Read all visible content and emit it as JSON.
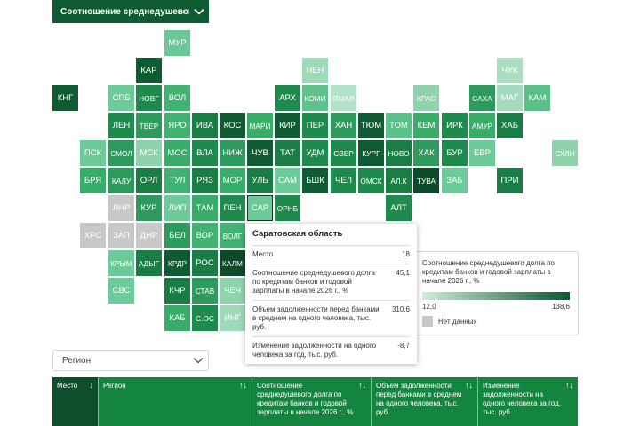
{
  "indicator_dropdown": {
    "label": "Соотношение среднедушевог…",
    "icon": "chevron-down-icon"
  },
  "map": {
    "tiles": [
      {
        "code": "МУР",
        "fill": "#68c996",
        "text": "#ffffff"
      },
      {
        "code": "КАР",
        "fill": "#0f5c34",
        "text": "#ffffff"
      },
      {
        "code": "НЕН",
        "fill": "#9ed9b8",
        "text": "#ffffff"
      },
      {
        "code": "ЧУК",
        "fill": "#a9dec1",
        "text": "#ffffff"
      },
      {
        "code": "КНГ",
        "fill": "#0f5c34",
        "text": "#ffffff"
      },
      {
        "code": "СПБ",
        "fill": "#6dca99",
        "text": "#ffffff"
      },
      {
        "code": "НОВГ",
        "fill": "#1f8a4e",
        "text": "#ffffff"
      },
      {
        "code": "ВОЛ",
        "fill": "#42b273",
        "text": "#ffffff"
      },
      {
        "code": "АРХ",
        "fill": "#1f8a4e",
        "text": "#ffffff"
      },
      {
        "code": "КОМИ",
        "fill": "#5fc28d",
        "text": "#ffffff"
      },
      {
        "code": "ЯМАЛ",
        "fill": "#b3e2c8",
        "text": "#ffffff"
      },
      {
        "code": "КРАС",
        "fill": "#8fd3ad",
        "text": "#ffffff"
      },
      {
        "code": "САХА",
        "fill": "#2e9a5e",
        "text": "#ffffff"
      },
      {
        "code": "МАГ",
        "fill": "#a3dcbd",
        "text": "#ffffff"
      },
      {
        "code": "КАМ",
        "fill": "#5bbf89",
        "text": "#ffffff"
      },
      {
        "code": "ЛЕН",
        "fill": "#1f8a4e",
        "text": "#ffffff"
      },
      {
        "code": "ТВЕР",
        "fill": "#2e9a5e",
        "text": "#ffffff"
      },
      {
        "code": "ЯРО",
        "fill": "#42b273",
        "text": "#ffffff"
      },
      {
        "code": "ИВА",
        "fill": "#1a7d46",
        "text": "#ffffff"
      },
      {
        "code": "КОС",
        "fill": "#0f5c34",
        "text": "#ffffff"
      },
      {
        "code": "МАРИ",
        "fill": "#3aac6a",
        "text": "#ffffff"
      },
      {
        "code": "КИР",
        "fill": "#0f5c34",
        "text": "#ffffff"
      },
      {
        "code": "ПЕР",
        "fill": "#1f8a4e",
        "text": "#ffffff"
      },
      {
        "code": "ХАН",
        "fill": "#2e9a5e",
        "text": "#ffffff"
      },
      {
        "code": "ТЮМ",
        "fill": "#0f5c34",
        "text": "#ffffff"
      },
      {
        "code": "ТОМ",
        "fill": "#5bbf89",
        "text": "#ffffff"
      },
      {
        "code": "КЕМ",
        "fill": "#3aac6a",
        "text": "#ffffff"
      },
      {
        "code": "ИРК",
        "fill": "#1f8a4e",
        "text": "#ffffff"
      },
      {
        "code": "АМУР",
        "fill": "#3aac6a",
        "text": "#ffffff"
      },
      {
        "code": "ХАБ",
        "fill": "#1a7d46",
        "text": "#ffffff"
      },
      {
        "code": "ПСК",
        "fill": "#6dca99",
        "text": "#ffffff"
      },
      {
        "code": "СМОЛ",
        "fill": "#2e9a5e",
        "text": "#ffffff"
      },
      {
        "code": "МСК",
        "fill": "#8fd3ad",
        "text": "#ffffff"
      },
      {
        "code": "МОС",
        "fill": "#3aac6a",
        "text": "#ffffff"
      },
      {
        "code": "ВЛА",
        "fill": "#1f8a4e",
        "text": "#ffffff"
      },
      {
        "code": "НИЖ",
        "fill": "#2e9a5e",
        "text": "#ffffff"
      },
      {
        "code": "ЧУВ",
        "fill": "#0f5c34",
        "text": "#ffffff"
      },
      {
        "code": "ТАТ",
        "fill": "#1a7d46",
        "text": "#ffffff"
      },
      {
        "code": "УДМ",
        "fill": "#1f8a4e",
        "text": "#ffffff"
      },
      {
        "code": "СВЕР",
        "fill": "#1f8a4e",
        "text": "#ffffff"
      },
      {
        "code": "КУРГ",
        "fill": "#0f5c34",
        "text": "#ffffff"
      },
      {
        "code": "НОВО",
        "fill": "#1a7d46",
        "text": "#ffffff"
      },
      {
        "code": "ХАК",
        "fill": "#2e9a5e",
        "text": "#ffffff"
      },
      {
        "code": "БУР",
        "fill": "#1f8a4e",
        "text": "#ffffff"
      },
      {
        "code": "ЕВР",
        "fill": "#6dca99",
        "text": "#ffffff"
      },
      {
        "code": "СХЛН",
        "fill": "#8fd3ad",
        "text": "#ffffff"
      },
      {
        "code": "БРЯ",
        "fill": "#3aac6a",
        "text": "#ffffff"
      },
      {
        "code": "КАЛУ",
        "fill": "#2e9a5e",
        "text": "#ffffff"
      },
      {
        "code": "ОРЛ",
        "fill": "#1a7d46",
        "text": "#ffffff"
      },
      {
        "code": "ТУЛ",
        "fill": "#42b273",
        "text": "#ffffff"
      },
      {
        "code": "РЯЗ",
        "fill": "#1a7d46",
        "text": "#ffffff"
      },
      {
        "code": "МОР",
        "fill": "#3aac6a",
        "text": "#ffffff"
      },
      {
        "code": "УЛЬ",
        "fill": "#1a7d46",
        "text": "#ffffff"
      },
      {
        "code": "САМ",
        "fill": "#6dca99",
        "text": "#ffffff"
      },
      {
        "code": "БШК",
        "fill": "#0f5c34",
        "text": "#ffffff"
      },
      {
        "code": "ЧЕЛ",
        "fill": "#1f8a4e",
        "text": "#ffffff"
      },
      {
        "code": "ОМСК",
        "fill": "#1f8a4e",
        "text": "#ffffff"
      },
      {
        "code": "АЛ.К",
        "fill": "#1a7d46",
        "text": "#ffffff"
      },
      {
        "code": "ТУВА",
        "fill": "#0c4a2a",
        "text": "#ffffff"
      },
      {
        "code": "ЗАБ",
        "fill": "#6dca99",
        "text": "#ffffff"
      },
      {
        "code": "ПРИ",
        "fill": "#1a7d46",
        "text": "#ffffff"
      },
      {
        "code": "ЛНР",
        "fill": "#c8c8c8",
        "text": "#ffffff"
      },
      {
        "code": "КУР",
        "fill": "#2e9a5e",
        "text": "#ffffff"
      },
      {
        "code": "ЛИП",
        "fill": "#6dca99",
        "text": "#ffffff"
      },
      {
        "code": "ТАМ",
        "fill": "#3aac6a",
        "text": "#ffffff"
      },
      {
        "code": "ПЕН",
        "fill": "#1f8a4e",
        "text": "#ffffff"
      },
      {
        "code": "САР",
        "fill": "#6dca99",
        "text": "#ffffff",
        "selected": true
      },
      {
        "code": "ОРНБ",
        "fill": "#1f8a4e",
        "text": "#ffffff"
      },
      {
        "code": "АЛТ",
        "fill": "#1f8a4e",
        "text": "#ffffff"
      },
      {
        "code": "ХРС",
        "fill": "#c8c8c8",
        "text": "#ffffff"
      },
      {
        "code": "ЗАП",
        "fill": "#c8c8c8",
        "text": "#ffffff"
      },
      {
        "code": "ДНР",
        "fill": "#c8c8c8",
        "text": "#ffffff"
      },
      {
        "code": "БЕЛ",
        "fill": "#2e9a5e",
        "text": "#ffffff"
      },
      {
        "code": "ВОР",
        "fill": "#42b273",
        "text": "#ffffff"
      },
      {
        "code": "ВОЛГ",
        "fill": "#42b273",
        "text": "#ffffff"
      },
      {
        "code": "КРЫМ",
        "fill": "#6dca99",
        "text": "#ffffff"
      },
      {
        "code": "АДЫГ",
        "fill": "#1a7d46",
        "text": "#ffffff"
      },
      {
        "code": "КРДР",
        "fill": "#0f5c34",
        "text": "#ffffff"
      },
      {
        "code": "РОС",
        "fill": "#1a7d46",
        "text": "#ffffff"
      },
      {
        "code": "КАЛМ",
        "fill": "#0c4a2a",
        "text": "#ffffff"
      },
      {
        "code": "СВС",
        "fill": "#6dca99",
        "text": "#ffffff"
      },
      {
        "code": "КЧР",
        "fill": "#1a7d46",
        "text": "#ffffff"
      },
      {
        "code": "СТАВ",
        "fill": "#2e9a5e",
        "text": "#ffffff"
      },
      {
        "code": "ЧЕЧ",
        "fill": "#8fd3ad",
        "text": "#ffffff"
      },
      {
        "code": "КАБ",
        "fill": "#3aac6a",
        "text": "#ffffff"
      },
      {
        "code": "С.ОС",
        "fill": "#1f8a4e",
        "text": "#ffffff"
      },
      {
        "code": "ИНГ",
        "fill": "#9ed9b8",
        "text": "#ffffff"
      }
    ]
  },
  "tooltip": {
    "region_name": "Саратовская область",
    "rows": [
      {
        "label": "Место",
        "value": "18"
      },
      {
        "label": "Соотношение среднедушевого долга по кредитам банков и годовой зарплаты в начале 2026 г., %",
        "value": "45,1"
      },
      {
        "label": "Объем задолженности перед банками в среднем на одного человека, тыс. руб.",
        "value": "310,6"
      },
      {
        "label": "Изменение задолженности на одного человека за год, тыс. руб.",
        "value": "-8,7"
      }
    ]
  },
  "legend": {
    "title": "Соотношение среднедушевого долга по кредитам банков и годовой зарплаты в начале 2026 г., %",
    "min_label": "12,0",
    "max_label": "138,6",
    "no_data_label": "Нет данных",
    "colors": {
      "low": "#cdeedc",
      "high": "#0c5730",
      "no_data": "#c8c8c8"
    }
  },
  "region_dropdown": {
    "placeholder": "Регион",
    "icon": "chevron-down-icon"
  },
  "table_header": {
    "columns": [
      {
        "label": "Место",
        "sort": "↓"
      },
      {
        "label": "Регион",
        "sort": "↑↓"
      },
      {
        "label": "Соотношение среднедушевого долга по кредитам банков и годовой зарплаты в начале 2026 г., %",
        "sort": "↑↓"
      },
      {
        "label": "Объем задолженности перед банками в среднем на одного человека, тыс. руб.",
        "sort": "↑↓"
      },
      {
        "label": "Изменение задолженности на одного человека за год, тыс. руб.",
        "sort": "↑↓"
      }
    ]
  }
}
